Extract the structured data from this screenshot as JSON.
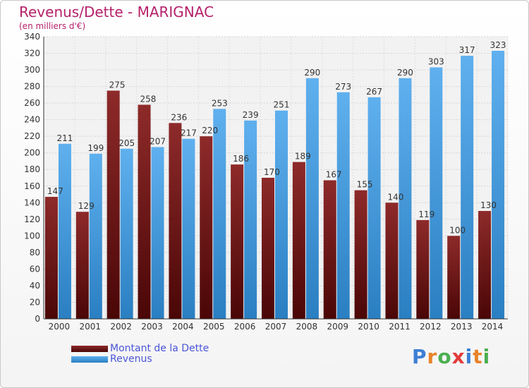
{
  "chart_data": {
    "type": "bar",
    "title": "Revenus/Dette - MARIGNAC",
    "subtitle": "(en milliers d'€)",
    "categories": [
      "2000",
      "2001",
      "2002",
      "2003",
      "2004",
      "2005",
      "2006",
      "2007",
      "2008",
      "2009",
      "2010",
      "2011",
      "2012",
      "2013",
      "2014"
    ],
    "series": [
      {
        "name": "Montant de la Dette",
        "color": "#7a1414",
        "values": [
          147,
          129,
          275,
          258,
          236,
          220,
          186,
          170,
          189,
          167,
          155,
          140,
          119,
          100,
          130
        ]
      },
      {
        "name": "Revenus",
        "color": "#3d9be3",
        "values": [
          211,
          199,
          205,
          207,
          217,
          253,
          239,
          251,
          290,
          273,
          267,
          290,
          303,
          317,
          323
        ]
      }
    ],
    "ylim": [
      0,
      340
    ],
    "ytick_step": 20,
    "grid": true,
    "legend": "bottom-left"
  },
  "logo": {
    "letters": [
      "P",
      "r",
      "o",
      "x",
      "i",
      "t",
      "i"
    ],
    "colors": [
      "#3d7fd6",
      "#e8832a",
      "#4caf50",
      "#e23b3b",
      "#3d7fd6",
      "#e8832a",
      "#4caf50"
    ]
  }
}
